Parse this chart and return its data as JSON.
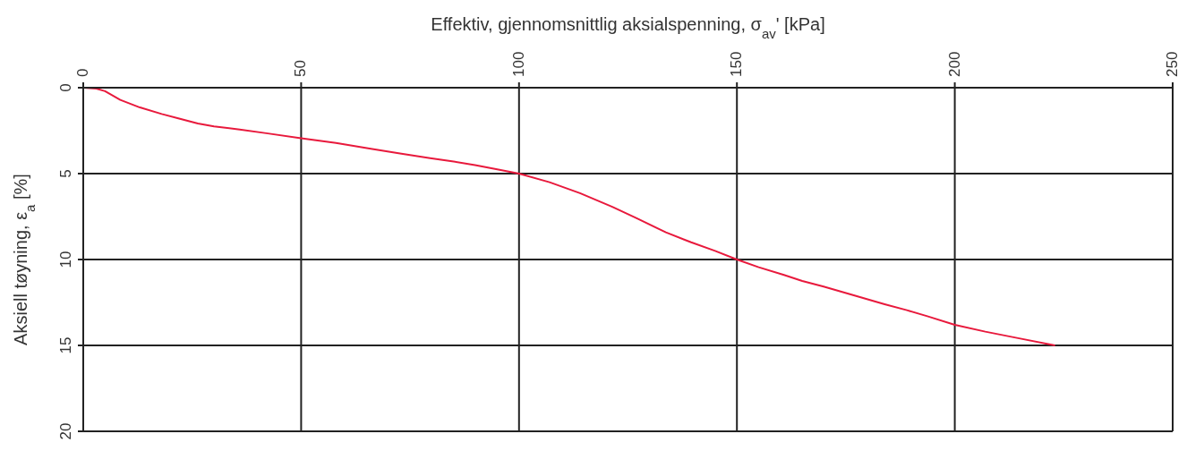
{
  "chart_data": {
    "type": "line",
    "xlabel": "Effektiv, gjennomsnittlig aksialspenning, σ$_{av}$'  [kPa]",
    "ylabel": "Aksiell tøyning, ε$_{a}$  [%]",
    "x": [
      0,
      3,
      5,
      8.5,
      13,
      18,
      22,
      26.3,
      30,
      35.9,
      42,
      50,
      58,
      66,
      73,
      79.6,
      85,
      89.9,
      95,
      100,
      107,
      114,
      121.4,
      127,
      133.7,
      139.5,
      145,
      150,
      155,
      160.8,
      165,
      169.9,
      177,
      183.9,
      189,
      193.7,
      200,
      207,
      214,
      223
    ],
    "series": [
      {
        "color": "#e8193c",
        "values": [
          0,
          0.05,
          0.2,
          0.71,
          1.15,
          1.53,
          1.8,
          2.08,
          2.25,
          2.44,
          2.65,
          2.94,
          3.22,
          3.56,
          3.84,
          4.1,
          4.3,
          4.5,
          4.75,
          5,
          5.5,
          6.14,
          6.93,
          7.6,
          8.42,
          9.0,
          9.5,
          10,
          10.45,
          10.9,
          11.25,
          11.58,
          12.1,
          12.6,
          12.95,
          13.3,
          13.8,
          14.2,
          14.55,
          15
        ]
      }
    ],
    "xlim": [
      0,
      250
    ],
    "xticks": [
      0,
      50,
      100,
      150,
      200,
      250
    ],
    "ylim": [
      20,
      0
    ],
    "yticks": [
      0,
      5,
      10,
      15,
      20
    ],
    "grid": true,
    "line_style": "solid",
    "marker": "none"
  }
}
